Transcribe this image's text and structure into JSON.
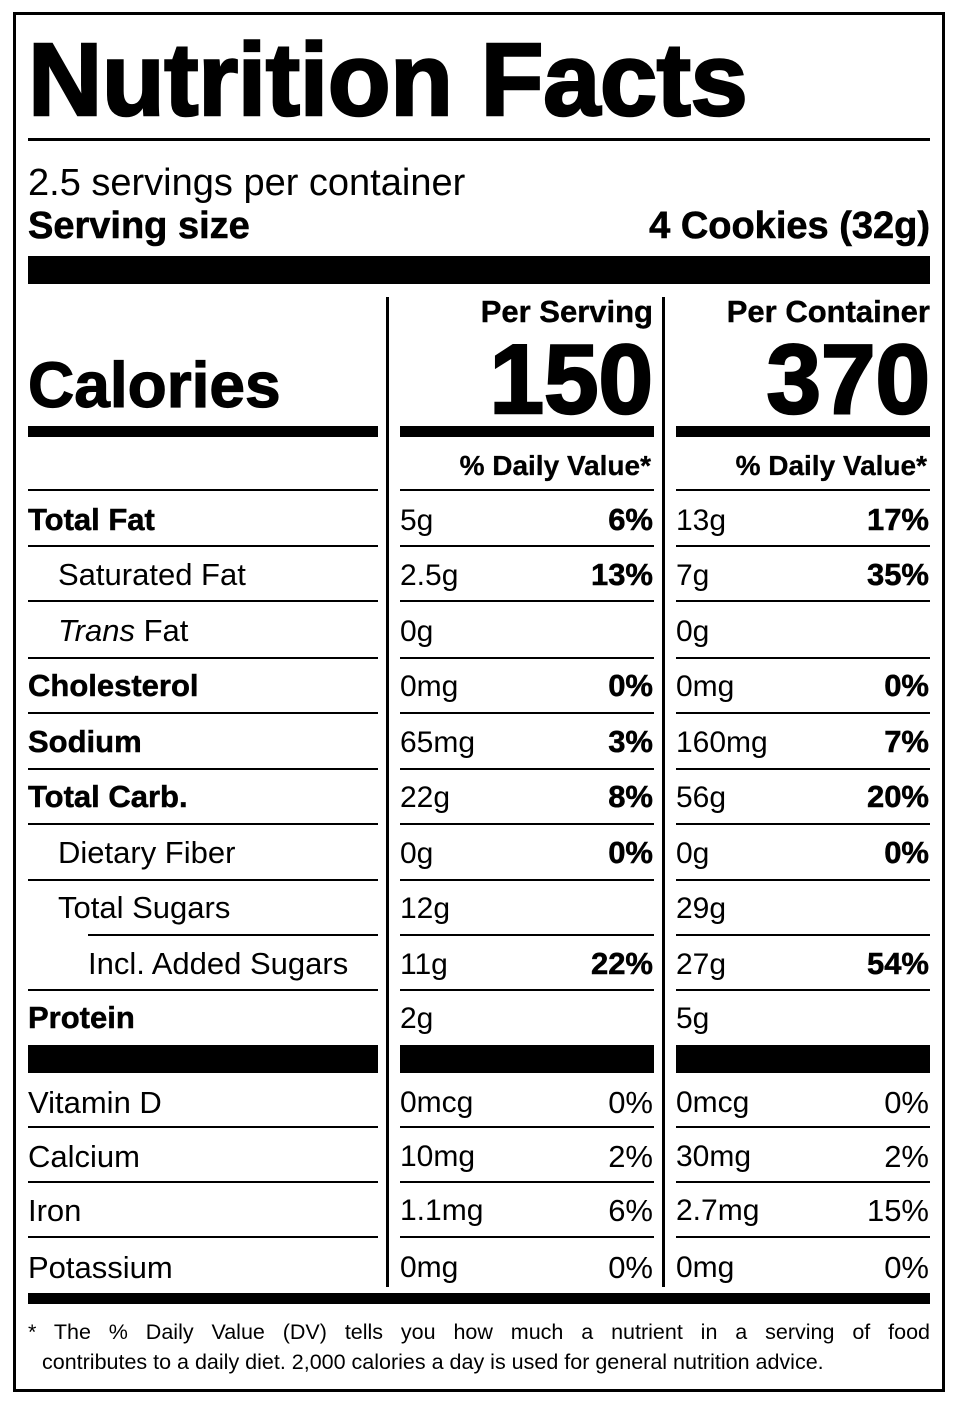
{
  "header": {
    "title": "Nutrition Facts",
    "servings_per_container": "2.5 servings per container",
    "serving_size_label": "Serving size",
    "serving_size_value": "4 Cookies (32g)"
  },
  "calories": {
    "label": "Calories",
    "per_serving_heading": "Per Serving",
    "per_container_heading": "Per Container",
    "per_serving": "150",
    "per_container": "370"
  },
  "daily_value_heading": "% Daily Value*",
  "nutrients": [
    {
      "label": "Total Fat",
      "serving_amount": "5g",
      "serving_dv": "6%",
      "container_amount": "13g",
      "container_dv": "17%"
    },
    {
      "label": "Saturated Fat",
      "serving_amount": "2.5g",
      "serving_dv": "13%",
      "container_amount": "7g",
      "container_dv": "35%"
    },
    {
      "label_italic": "Trans",
      "label": " Fat",
      "serving_amount": "0g",
      "serving_dv": "",
      "container_amount": "0g",
      "container_dv": ""
    },
    {
      "label": "Cholesterol",
      "serving_amount": "0mg",
      "serving_dv": "0%",
      "container_amount": "0mg",
      "container_dv": "0%"
    },
    {
      "label": "Sodium",
      "serving_amount": "65mg",
      "serving_dv": "3%",
      "container_amount": "160mg",
      "container_dv": "7%"
    },
    {
      "label": "Total Carb.",
      "serving_amount": "22g",
      "serving_dv": "8%",
      "container_amount": "56g",
      "container_dv": "20%"
    },
    {
      "label": "Dietary Fiber",
      "serving_amount": "0g",
      "serving_dv": "0%",
      "container_amount": "0g",
      "container_dv": "0%"
    },
    {
      "label": "Total Sugars",
      "serving_amount": "12g",
      "serving_dv": "",
      "container_amount": "29g",
      "container_dv": ""
    },
    {
      "label": "Incl. Added Sugars",
      "serving_amount": "11g",
      "serving_dv": "22%",
      "container_amount": "27g",
      "container_dv": "54%"
    },
    {
      "label": "Protein",
      "serving_amount": "2g",
      "serving_dv": "",
      "container_amount": "5g",
      "container_dv": ""
    }
  ],
  "vitamins": [
    {
      "label": "Vitamin D",
      "serving_amount": "0mcg",
      "serving_dv": "0%",
      "container_amount": "0mcg",
      "container_dv": "0%"
    },
    {
      "label": "Calcium",
      "serving_amount": "10mg",
      "serving_dv": "2%",
      "container_amount": "30mg",
      "container_dv": "2%"
    },
    {
      "label": "Iron",
      "serving_amount": "1.1mg",
      "serving_dv": "6%",
      "container_amount": "2.7mg",
      "container_dv": "15%"
    },
    {
      "label": "Potassium",
      "serving_amount": "0mg",
      "serving_dv": "0%",
      "container_amount": "0mg",
      "container_dv": "0%"
    }
  ],
  "footnote": {
    "asterisk": "*",
    "line1": "The % Daily Value (DV) tells you how much a nutrient in a serving of food",
    "line2": "contributes to a daily diet. 2,000 calories a day is used for general nutrition advice."
  }
}
